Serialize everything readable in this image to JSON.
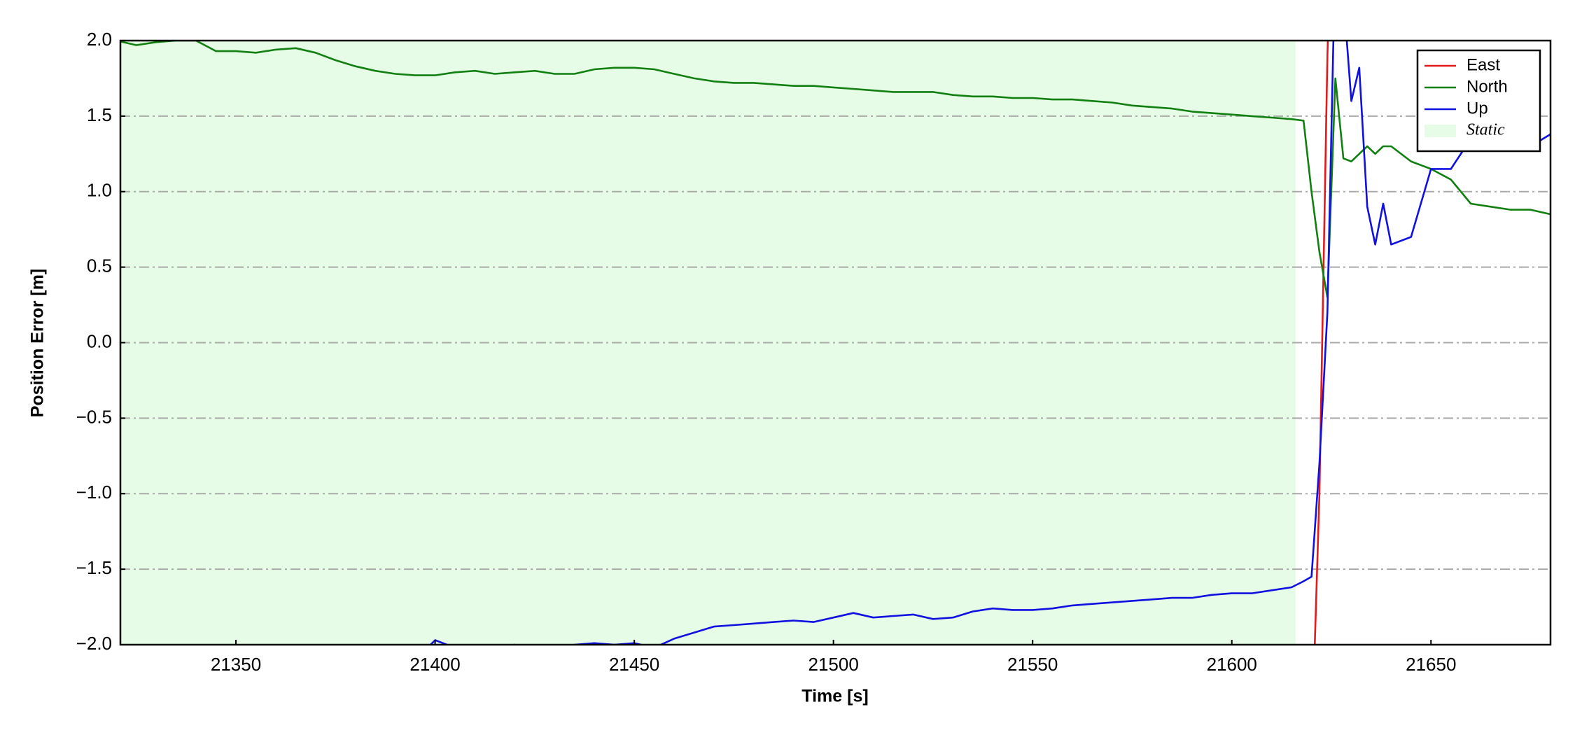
{
  "chart_data": {
    "type": "line",
    "xlabel": "Time [s]",
    "ylabel": "Position Error [m]",
    "x": [
      21320,
      21325,
      21330,
      21335,
      21340,
      21345,
      21350,
      21355,
      21360,
      21365,
      21370,
      21375,
      21380,
      21385,
      21390,
      21395,
      21400,
      21405,
      21410,
      21415,
      21420,
      21425,
      21430,
      21435,
      21440,
      21445,
      21450,
      21455,
      21460,
      21465,
      21470,
      21475,
      21480,
      21485,
      21490,
      21495,
      21500,
      21505,
      21510,
      21515,
      21520,
      21525,
      21530,
      21535,
      21540,
      21545,
      21550,
      21555,
      21560,
      21565,
      21570,
      21575,
      21580,
      21585,
      21590,
      21595,
      21600,
      21605,
      21610,
      21615,
      21618,
      21620,
      21622,
      21624,
      21626,
      21628,
      21630,
      21632,
      21634,
      21636,
      21638,
      21640,
      21645,
      21650,
      21655,
      21660,
      21665,
      21670,
      21675,
      21680
    ],
    "series": [
      {
        "name": "East",
        "color": "#e31a1c",
        "values": [
          null,
          null,
          null,
          null,
          null,
          null,
          null,
          null,
          null,
          null,
          null,
          null,
          null,
          null,
          null,
          null,
          null,
          null,
          null,
          null,
          null,
          null,
          null,
          null,
          null,
          null,
          null,
          null,
          null,
          null,
          null,
          null,
          null,
          null,
          null,
          null,
          null,
          null,
          null,
          null,
          null,
          null,
          null,
          null,
          null,
          null,
          null,
          null,
          null,
          null,
          null,
          null,
          null,
          null,
          null,
          null,
          null,
          null,
          null,
          null,
          null,
          -2.7,
          -1.0,
          1.9,
          3.8,
          null,
          null,
          null,
          null,
          null,
          null,
          null,
          null,
          null,
          null,
          null,
          null,
          null,
          null,
          null
        ]
      },
      {
        "name": "North",
        "color": "#118011",
        "values": [
          2.0,
          1.97,
          1.99,
          2.0,
          2.0,
          1.93,
          1.93,
          1.92,
          1.94,
          1.95,
          1.92,
          1.87,
          1.83,
          1.8,
          1.78,
          1.77,
          1.77,
          1.79,
          1.8,
          1.78,
          1.79,
          1.8,
          1.78,
          1.78,
          1.81,
          1.82,
          1.82,
          1.81,
          1.78,
          1.75,
          1.73,
          1.72,
          1.72,
          1.71,
          1.7,
          1.7,
          1.69,
          1.68,
          1.67,
          1.66,
          1.66,
          1.66,
          1.64,
          1.63,
          1.63,
          1.62,
          1.62,
          1.61,
          1.61,
          1.6,
          1.59,
          1.57,
          1.56,
          1.55,
          1.53,
          1.52,
          1.51,
          1.5,
          1.49,
          1.48,
          1.47,
          1.0,
          0.6,
          0.3,
          1.75,
          1.22,
          1.2,
          1.25,
          1.3,
          1.25,
          1.3,
          1.3,
          1.2,
          1.15,
          1.08,
          0.92,
          0.9,
          0.88,
          0.88,
          0.85
        ]
      },
      {
        "name": "Up",
        "color": "#1010e0",
        "values": [
          -2.1,
          -2.1,
          -2.1,
          -2.1,
          -2.1,
          -2.1,
          -2.1,
          -2.1,
          -2.1,
          -2.1,
          -2.1,
          -2.1,
          -2.1,
          -2.1,
          -2.1,
          -2.1,
          -1.97,
          -2.02,
          -2.05,
          -2.03,
          -2.0,
          -2.05,
          -2.02,
          -2.0,
          -1.99,
          -2.0,
          -1.99,
          -2.02,
          -1.96,
          -1.92,
          -1.88,
          -1.87,
          -1.86,
          -1.85,
          -1.84,
          -1.85,
          -1.82,
          -1.79,
          -1.82,
          -1.81,
          -1.8,
          -1.83,
          -1.82,
          -1.78,
          -1.76,
          -1.77,
          -1.77,
          -1.76,
          -1.74,
          -1.73,
          -1.72,
          -1.71,
          -1.7,
          -1.69,
          -1.69,
          -1.67,
          -1.66,
          -1.66,
          -1.64,
          -1.62,
          -1.58,
          -1.55,
          -0.8,
          0.2,
          2.6,
          2.3,
          1.6,
          1.82,
          0.9,
          0.65,
          0.92,
          0.65,
          0.7,
          1.15,
          1.15,
          1.35,
          1.6,
          1.5,
          1.3,
          1.38
        ]
      }
    ],
    "shaded_region": {
      "name": "Static",
      "color": "#e6fce6",
      "xlim": [
        21320,
        21616
      ]
    },
    "xlim": [
      21321,
      21680
    ],
    "ylim": [
      -2,
      2
    ],
    "xticks": [
      21350,
      21400,
      21450,
      21500,
      21550,
      21600,
      21650
    ],
    "yticks": [
      {
        "value": -2,
        "label": "−2.0"
      },
      {
        "value": -1.5,
        "label": "−1.5"
      },
      {
        "value": -1,
        "label": "−1.0"
      },
      {
        "value": -0.5,
        "label": "−0.5"
      },
      {
        "value": 0,
        "label": "0.0"
      },
      {
        "value": 0.5,
        "label": "0.5"
      },
      {
        "value": 1,
        "label": "1.0"
      },
      {
        "value": 1.5,
        "label": "1.5"
      },
      {
        "value": 2,
        "label": "2.0"
      }
    ],
    "grid": true,
    "legend": "upper right"
  }
}
